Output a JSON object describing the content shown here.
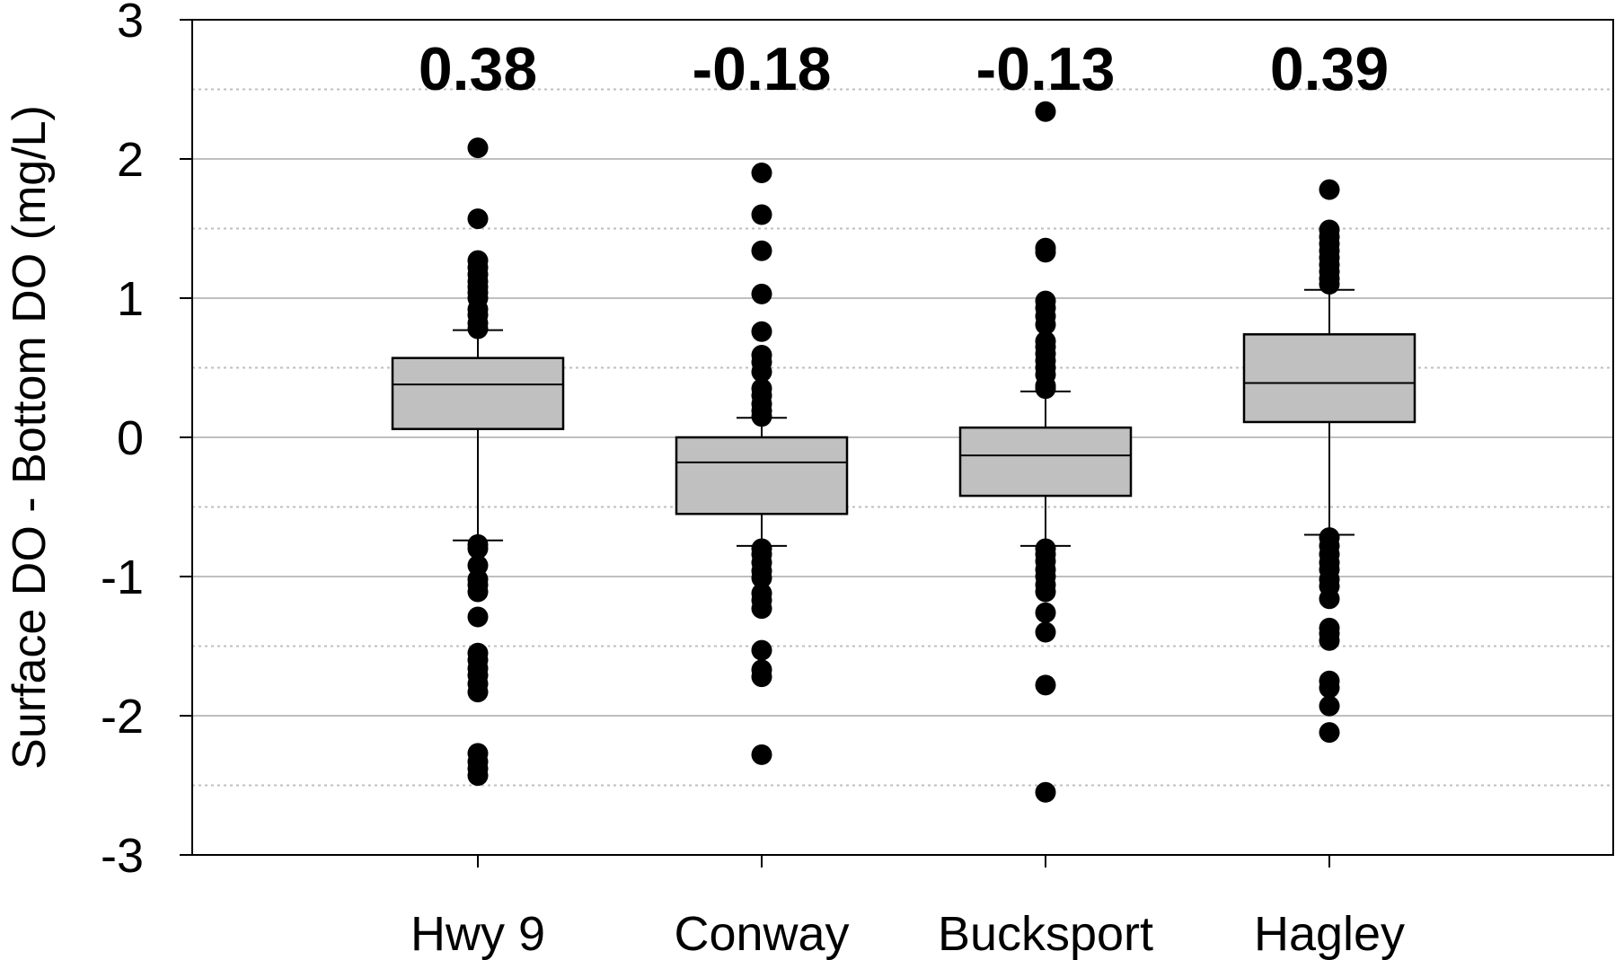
{
  "chart_data": {
    "type": "box",
    "title": "",
    "xlabel": "",
    "ylabel": "Surface DO - Bottom DO (mg/L)",
    "ylim": [
      -3,
      3
    ],
    "yticks": [
      3,
      2,
      1,
      0,
      -1,
      -2,
      -3
    ],
    "ytick_labels": [
      "3",
      "2",
      "1",
      "0",
      "-1",
      "-2",
      "-3"
    ],
    "grid": {
      "major_solid": [
        -2,
        -1,
        0,
        1,
        2
      ],
      "minor_dotted": [
        -2.5,
        -1.5,
        -0.5,
        0.5,
        1.5,
        2.5
      ]
    },
    "categories": [
      "Hwy 9",
      "Conway",
      "Bucksport",
      "Hagley"
    ],
    "median_labels": [
      "0.38",
      "-0.18",
      "-0.13",
      "0.39"
    ],
    "colors": {
      "box_fill": "#c0c0c0",
      "outline": "#000000",
      "grid": "#bfbfbf"
    },
    "boxes": [
      {
        "category": "Hwy 9",
        "q1": 0.06,
        "median": 0.38,
        "q3": 0.57,
        "whisker_low": -0.74,
        "whisker_high": 0.77,
        "outliers": [
          2.08,
          1.57,
          1.27,
          1.22,
          1.17,
          1.12,
          1.08,
          1.04,
          1.0,
          0.92,
          0.88,
          0.82,
          0.78,
          -0.77,
          -0.8,
          -0.92,
          -1.02,
          -1.06,
          -1.11,
          -1.29,
          -1.55,
          -1.6,
          -1.66,
          -1.71,
          -1.77,
          -1.83,
          -2.27,
          -2.33,
          -2.38,
          -2.43
        ]
      },
      {
        "category": "Conway",
        "q1": -0.55,
        "median": -0.18,
        "q3": 0.0,
        "whisker_low": -0.78,
        "whisker_high": 0.14,
        "outliers": [
          1.9,
          1.6,
          1.34,
          1.03,
          0.76,
          0.59,
          0.54,
          0.47,
          0.35,
          0.3,
          0.24,
          0.19,
          0.15,
          -0.8,
          -0.84,
          -0.9,
          -0.96,
          -1.01,
          -1.12,
          -1.17,
          -1.23,
          -1.53,
          -1.67,
          -1.72,
          -2.28
        ]
      },
      {
        "category": "Bucksport",
        "q1": -0.42,
        "median": -0.13,
        "q3": 0.07,
        "whisker_low": -0.78,
        "whisker_high": 0.33,
        "outliers": [
          2.34,
          1.36,
          1.33,
          0.98,
          0.93,
          0.87,
          0.81,
          0.69,
          0.65,
          0.6,
          0.55,
          0.5,
          0.45,
          0.37,
          0.35,
          -0.8,
          -0.84,
          -0.89,
          -0.95,
          -1.0,
          -1.06,
          -1.11,
          -1.26,
          -1.4,
          -1.78,
          -2.55
        ]
      },
      {
        "category": "Hagley",
        "q1": 0.11,
        "median": 0.39,
        "q3": 0.74,
        "whisker_low": -0.7,
        "whisker_high": 1.06,
        "outliers": [
          1.78,
          1.49,
          1.44,
          1.39,
          1.34,
          1.29,
          1.24,
          1.19,
          1.14,
          1.1,
          -0.72,
          -0.78,
          -0.84,
          -0.9,
          -0.95,
          -1.02,
          -1.07,
          -1.16,
          -1.37,
          -1.41,
          -1.46,
          -1.75,
          -1.8,
          -1.93,
          -2.12
        ]
      }
    ]
  }
}
